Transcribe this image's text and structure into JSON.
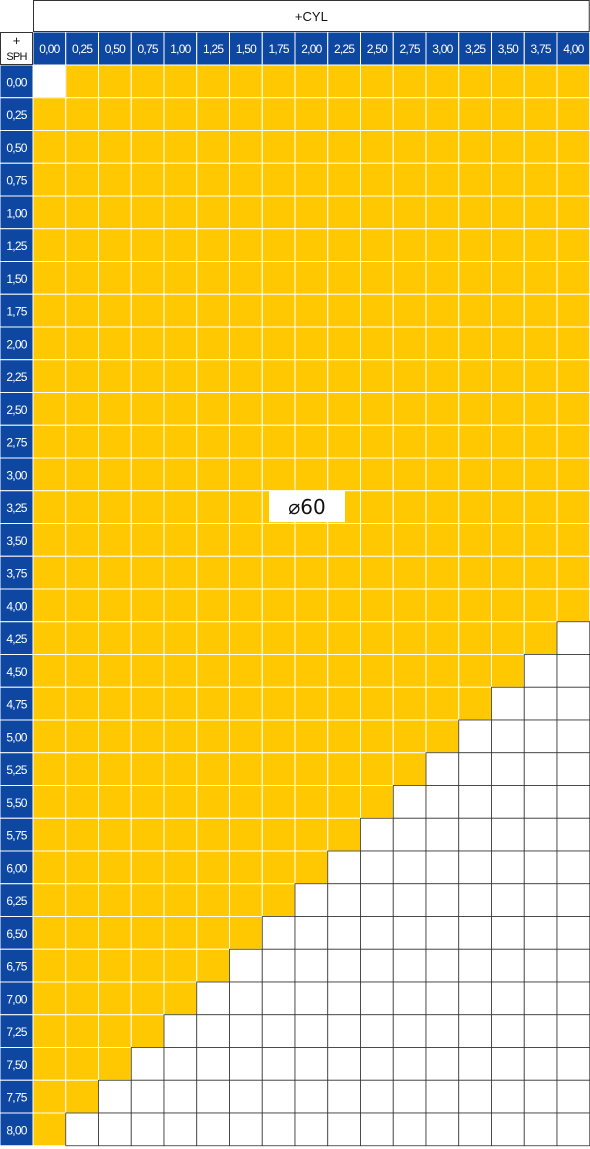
{
  "chart_data": {
    "type": "table",
    "title": "+CYL",
    "corner_label_top": "+",
    "corner_label_bottom": "SPH",
    "cyl_values": [
      "0,00",
      "0,25",
      "0,50",
      "0,75",
      "1,00",
      "1,25",
      "1,50",
      "1,75",
      "2,00",
      "2,25",
      "2,50",
      "2,75",
      "3,00",
      "3,25",
      "3,50",
      "3,75",
      "4,00"
    ],
    "sph_values": [
      "0,00",
      "0,25",
      "0,50",
      "0,75",
      "1,00",
      "1,25",
      "1,50",
      "1,75",
      "2,00",
      "2,25",
      "2,50",
      "2,75",
      "3,00",
      "3,25",
      "3,50",
      "3,75",
      "4,00",
      "4,25",
      "4,50",
      "4,75",
      "5,00",
      "5,25",
      "5,50",
      "5,75",
      "6,00",
      "6,25",
      "6,50",
      "6,75",
      "7,00",
      "7,25",
      "7,50",
      "7,75",
      "8,00"
    ],
    "available_max_total_power": 8.0,
    "excluded_cells": [
      {
        "sph": "0,00",
        "cyl": "0,00"
      }
    ],
    "diameter_label": "⌀60",
    "colors": {
      "header_blue": "#0d47a1",
      "available_yellow": "#ffc800",
      "unavailable": "#ffffff",
      "grid_available": "#ffffff",
      "grid_unavailable": "#333333"
    }
  }
}
